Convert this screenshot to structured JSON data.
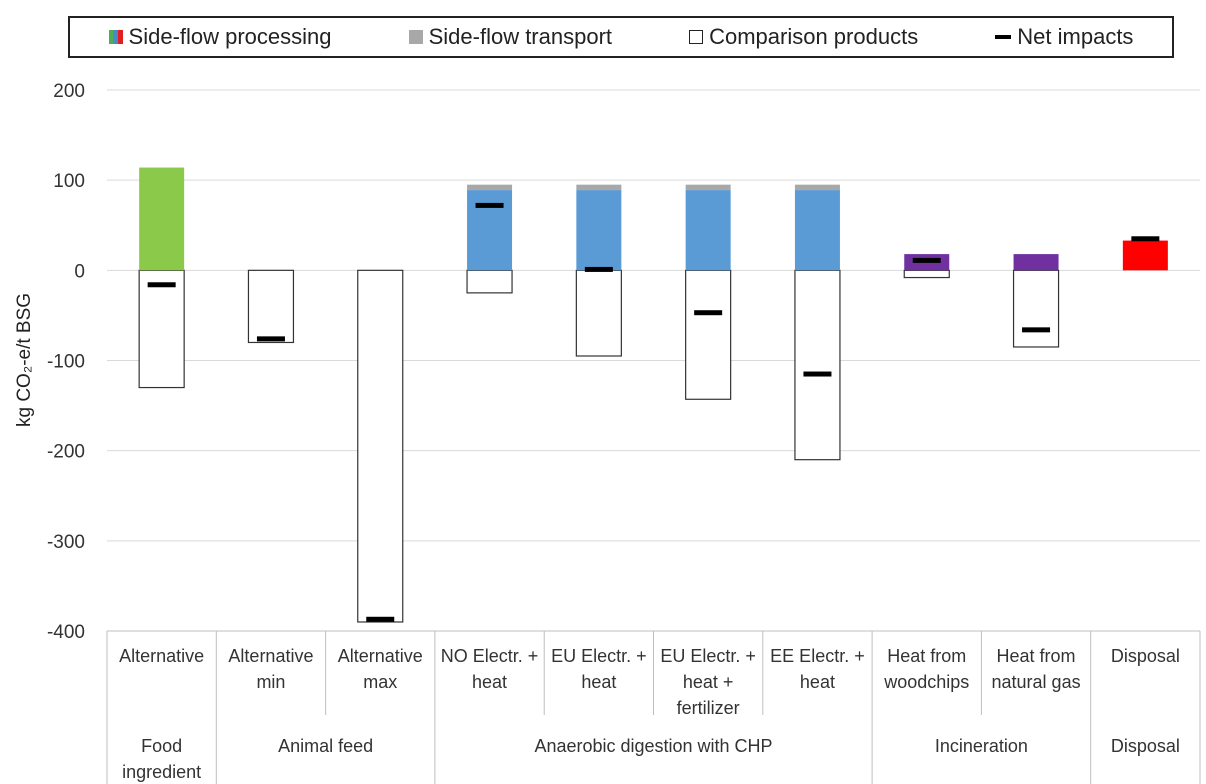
{
  "chart_data": {
    "type": "bar",
    "ylabel": "kg CO₂-e/t BSG",
    "ylim": [
      -400,
      200
    ],
    "yticks": [
      200,
      100,
      0,
      -100,
      -200,
      -300,
      -400
    ],
    "grid": true,
    "legend_position": "top",
    "legend": [
      {
        "key": "processing",
        "label": "Side-flow processing",
        "color": "#4caf50"
      },
      {
        "key": "transport",
        "label": "Side-flow transport",
        "color": "#a8a8a8"
      },
      {
        "key": "comparison",
        "label": "Comparison products",
        "color": "#ffffff"
      },
      {
        "key": "net",
        "label": "Net impacts",
        "color": "#000000"
      }
    ],
    "groups": [
      {
        "label": [
          "Food",
          "ingredient"
        ],
        "count": 1
      },
      {
        "label": [
          "Animal feed"
        ],
        "count": 2
      },
      {
        "label": [
          "Anaerobic digestion with CHP"
        ],
        "count": 4
      },
      {
        "label": [
          "Incineration"
        ],
        "count": 2
      },
      {
        "label": [
          "Disposal"
        ],
        "count": 1
      }
    ],
    "categories": [
      {
        "label": [
          "Alternative"
        ],
        "processing": 114,
        "transport": 0,
        "comparison": -130,
        "net": -16,
        "color": "#8ac94a"
      },
      {
        "label": [
          "Alternative",
          "min"
        ],
        "processing": 0,
        "transport": 0,
        "comparison": -80,
        "net": -76,
        "color": "#8ac94a"
      },
      {
        "label": [
          "Alternative",
          "max"
        ],
        "processing": 0,
        "transport": 0,
        "comparison": -390,
        "net": -387,
        "color": "#8ac94a"
      },
      {
        "label": [
          "NO Electr. +",
          "heat"
        ],
        "processing": 89,
        "transport": 6,
        "comparison": -25,
        "net": 72,
        "color": "#5b9bd5"
      },
      {
        "label": [
          "EU Electr. +",
          "heat"
        ],
        "processing": 89,
        "transport": 6,
        "comparison": -95,
        "net": 1,
        "color": "#5b9bd5"
      },
      {
        "label": [
          "EU Electr. +",
          "heat +",
          "fertilizer"
        ],
        "processing": 89,
        "transport": 6,
        "comparison": -143,
        "net": -47,
        "color": "#5b9bd5"
      },
      {
        "label": [
          "EE Electr. +",
          "heat"
        ],
        "processing": 89,
        "transport": 6,
        "comparison": -210,
        "net": -115,
        "color": "#5b9bd5"
      },
      {
        "label": [
          "Heat from",
          "woodchips"
        ],
        "processing": 18,
        "transport": 0,
        "comparison": -8,
        "net": 11,
        "color": "#7030a0"
      },
      {
        "label": [
          "Heat from",
          "natural gas"
        ],
        "processing": 18,
        "transport": 0,
        "comparison": -85,
        "net": -66,
        "color": "#7030a0"
      },
      {
        "label": [
          "Disposal"
        ],
        "processing": 33,
        "transport": 0,
        "comparison": 0,
        "net": 35,
        "color": "#ff0000"
      }
    ]
  }
}
